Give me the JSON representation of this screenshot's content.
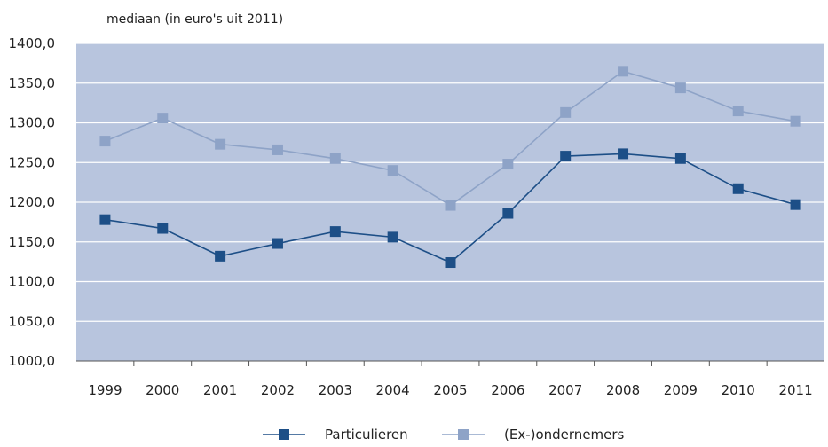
{
  "chart_data": {
    "type": "line",
    "ylabel": "mediaan (in euro's uit 2011)",
    "categories": [
      "1999",
      "2000",
      "2001",
      "2002",
      "2003",
      "2004",
      "2005",
      "2006",
      "2007",
      "2008",
      "2009",
      "2010",
      "2011"
    ],
    "series": [
      {
        "name": "Particulieren",
        "color": "#1d4f87",
        "values": [
          1178,
          1167,
          1132,
          1148,
          1163,
          1156,
          1124,
          1186,
          1258,
          1261,
          1255,
          1217,
          1197
        ]
      },
      {
        "name": "(Ex-)ondernemers",
        "color": "#8ea3c7",
        "values": [
          1277,
          1306,
          1273,
          1266,
          1255,
          1240,
          1196,
          1248,
          1313,
          1365,
          1344,
          1315,
          1302
        ]
      }
    ],
    "ylim": [
      1000,
      1400
    ],
    "yticks": [
      "1000,0",
      "1050,0",
      "1100,0",
      "1150,0",
      "1200,0",
      "1250,0",
      "1300,0",
      "1350,0",
      "1400,0"
    ],
    "grid": true,
    "legend_position": "bottom-center",
    "plot_background": "#b8c5de"
  }
}
